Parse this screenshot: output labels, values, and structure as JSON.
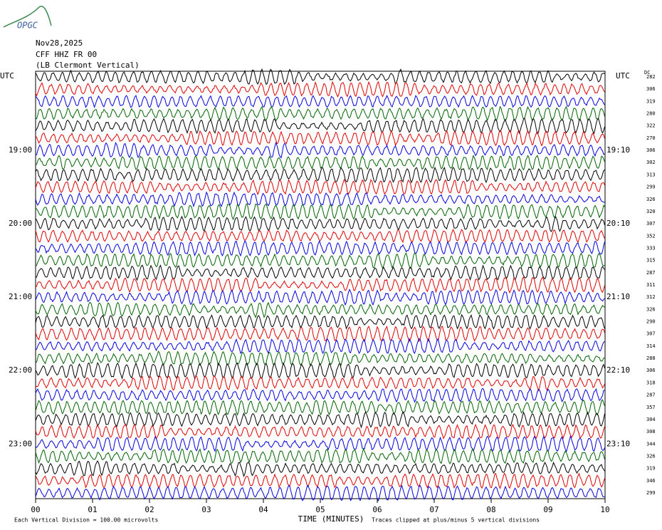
{
  "logo": "OPGC",
  "header": {
    "date": "Nov28,2025",
    "station": "CFF HHZ FR 00",
    "location": "(LB  Clermont Vertical)"
  },
  "left_axis": {
    "title": "UTC",
    "labels": [
      "19:00",
      "20:00",
      "21:00",
      "22:00",
      "23:00"
    ]
  },
  "right_axis": {
    "title": "UTC",
    "labels": [
      "19:10",
      "20:10",
      "21:10",
      "22:10",
      "23:10"
    ]
  },
  "dc_title": "DC",
  "dc_values": [
    282,
    306,
    319,
    280,
    322,
    270,
    306,
    302,
    313,
    299,
    326,
    320,
    307,
    352,
    333,
    315,
    287,
    311,
    312,
    326,
    290,
    307,
    314,
    288,
    306,
    318,
    287,
    357,
    304,
    308,
    344,
    326,
    319,
    346,
    299
  ],
  "x_axis": {
    "title": "TIME (MINUTES)",
    "ticks": [
      "00",
      "01",
      "02",
      "03",
      "04",
      "05",
      "06",
      "07",
      "08",
      "09",
      "10"
    ]
  },
  "footer": {
    "scale": "Each Vertical Division =  100.00 microvolts",
    "clip": "Traces clipped at plus/minus 5 vertical divisions"
  }
}
